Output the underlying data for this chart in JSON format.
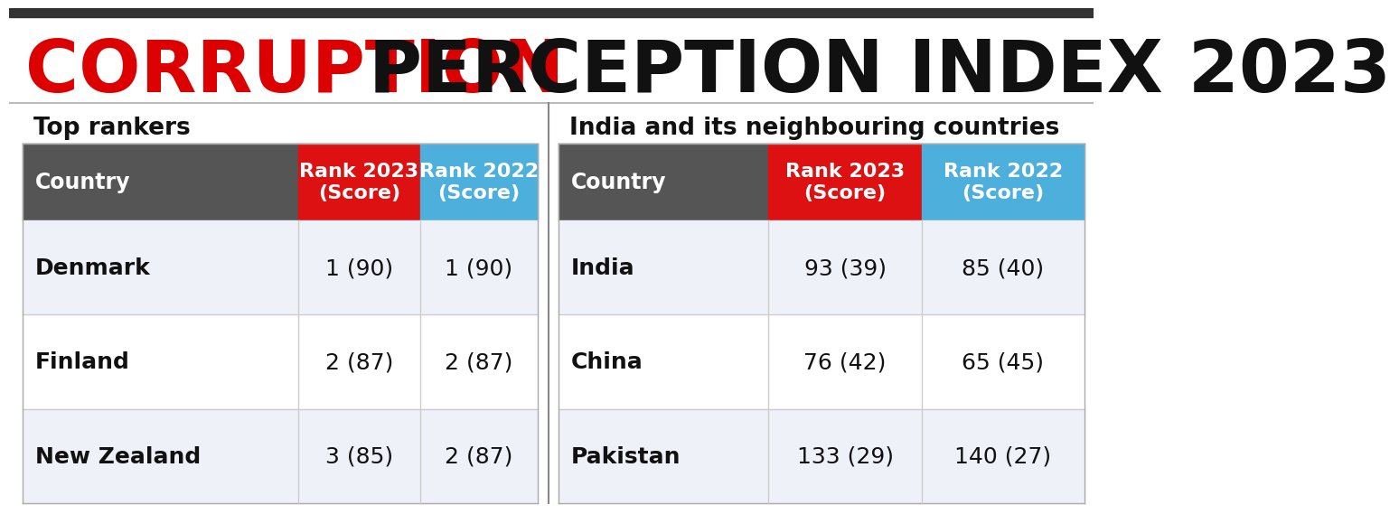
{
  "title_part1": "CORRUPTION",
  "title_part2": " PERCEPTION INDEX 2023",
  "title_color1": "#DD0000",
  "title_color2": "#111111",
  "title_fontsize": 58,
  "bg_color": "#FFFFFF",
  "header_bar_color": "#555555",
  "red_col_color": "#DD1111",
  "blue_col_color": "#4DAFDC",
  "section_label_left": "Top rankers",
  "section_label_right": "India and its neighbouring countries",
  "col_header1": "Country",
  "col_header2": "Rank 2023\n(Score)",
  "col_header3": "Rank 2022\n(Score)",
  "left_rows": [
    [
      "Denmark",
      "1 (90)",
      "1 (90)"
    ],
    [
      "Finland",
      "2 (87)",
      "2 (87)"
    ],
    [
      "New Zealand",
      "3 (85)",
      "2 (87)"
    ]
  ],
  "right_rows": [
    [
      "India",
      "93 (39)",
      "85 (40)"
    ],
    [
      "China",
      "76 (42)",
      "65 (45)"
    ],
    [
      "Pakistan",
      "133 (29)",
      "140 (27)"
    ]
  ],
  "row_bg_colors": [
    "#EEF2F8",
    "#FFFFFF",
    "#EEF2F8"
  ],
  "top_stripe_color": "#333333",
  "divider_color": "#CCCCCC",
  "border_color": "#AAAAAA"
}
